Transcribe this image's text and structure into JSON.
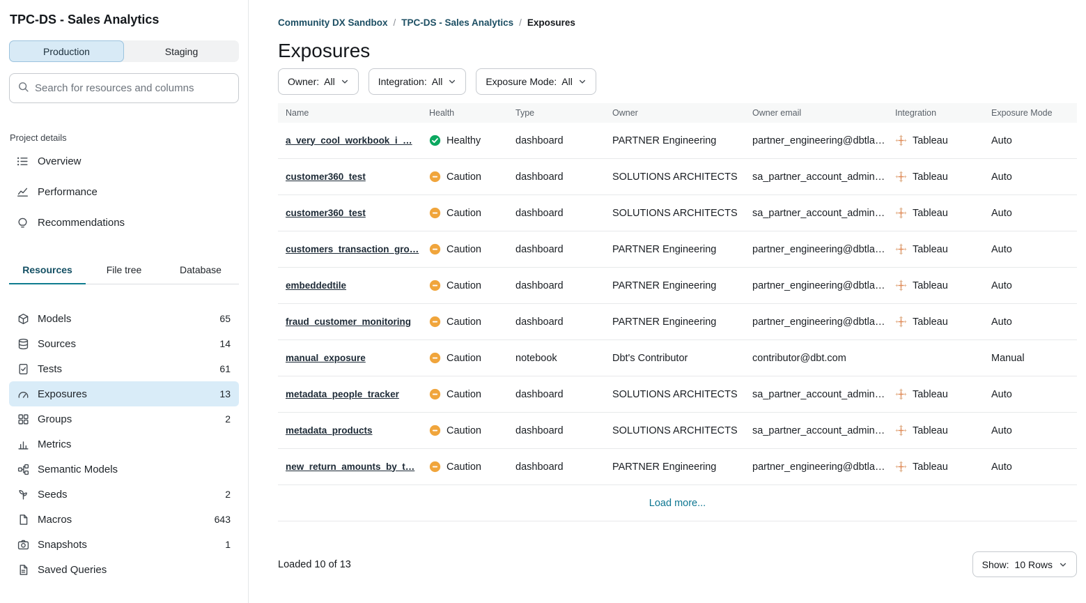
{
  "colors": {
    "accent_teal": "#0d7691",
    "healthy_green": "#0ca860",
    "caution_amber": "#f0a53c",
    "selected_blue": "#d9ecf8",
    "production_blue": "#d8eaf6",
    "tableau_orange": "#e08a57"
  },
  "sidebar": {
    "title": "TPC-DS - Sales Analytics",
    "env": {
      "production": "Production",
      "staging": "Staging"
    },
    "search_placeholder": "Search for resources and columns",
    "project_details_label": "Project details",
    "project_links": [
      {
        "label": "Overview",
        "icon": "list-icon"
      },
      {
        "label": "Performance",
        "icon": "chart-line-icon"
      },
      {
        "label": "Recommendations",
        "icon": "lightbulb-icon"
      }
    ],
    "tabs": {
      "resources": "Resources",
      "file_tree": "File tree",
      "database": "Database",
      "active": "Resources"
    },
    "resources": [
      {
        "label": "Models",
        "count": "65",
        "icon": "cube-icon",
        "selected": false
      },
      {
        "label": "Sources",
        "count": "14",
        "icon": "database-icon",
        "selected": false
      },
      {
        "label": "Tests",
        "count": "61",
        "icon": "test-icon",
        "selected": false
      },
      {
        "label": "Exposures",
        "count": "13",
        "icon": "gauge-icon",
        "selected": true
      },
      {
        "label": "Groups",
        "count": "2",
        "icon": "grid-icon",
        "selected": false
      },
      {
        "label": "Metrics",
        "count": "",
        "icon": "bar-chart-icon",
        "selected": false
      },
      {
        "label": "Semantic Models",
        "count": "",
        "icon": "semantic-icon",
        "selected": false
      },
      {
        "label": "Seeds",
        "count": "2",
        "icon": "seed-icon",
        "selected": false
      },
      {
        "label": "Macros",
        "count": "643",
        "icon": "document-icon",
        "selected": false
      },
      {
        "label": "Snapshots",
        "count": "1",
        "icon": "camera-icon",
        "selected": false
      },
      {
        "label": "Saved Queries",
        "count": "",
        "icon": "file-icon",
        "selected": false
      }
    ]
  },
  "main": {
    "breadcrumb": {
      "items": [
        "Community DX Sandbox",
        "TPC-DS - Sales Analytics"
      ],
      "current": "Exposures",
      "separator": "/"
    },
    "title": "Exposures",
    "filters": [
      {
        "label": "Owner:",
        "value": "All"
      },
      {
        "label": "Integration:",
        "value": "All"
      },
      {
        "label": "Exposure Mode:",
        "value": "All"
      }
    ],
    "table": {
      "columns": [
        "Name",
        "Health",
        "Type",
        "Owner",
        "Owner email",
        "Integration",
        "Exposure Mode"
      ],
      "rows": [
        {
          "name": "a_very_cool_workbook_i_…",
          "health": "Healthy",
          "health_icon": "check-circle-icon",
          "type": "dashboard",
          "owner": "PARTNER Engineering",
          "owner_email": "partner_engineering@dbtla…",
          "integration": "Tableau",
          "integration_icon": "tableau-icon",
          "exposure_mode": "Auto"
        },
        {
          "name": "customer360_test",
          "health": "Caution",
          "health_icon": "dash-circle-icon",
          "type": "dashboard",
          "owner": "SOLUTIONS ARCHITECTS",
          "owner_email": "sa_partner_account_admin…",
          "integration": "Tableau",
          "integration_icon": "tableau-icon",
          "exposure_mode": "Auto"
        },
        {
          "name": "customer360_test",
          "health": "Caution",
          "health_icon": "dash-circle-icon",
          "type": "dashboard",
          "owner": "SOLUTIONS ARCHITECTS",
          "owner_email": "sa_partner_account_admin…",
          "integration": "Tableau",
          "integration_icon": "tableau-icon",
          "exposure_mode": "Auto"
        },
        {
          "name": "customers_transaction_gro…",
          "health": "Caution",
          "health_icon": "dash-circle-icon",
          "type": "dashboard",
          "owner": "PARTNER Engineering",
          "owner_email": "partner_engineering@dbtla…",
          "integration": "Tableau",
          "integration_icon": "tableau-icon",
          "exposure_mode": "Auto"
        },
        {
          "name": "embeddedtile",
          "health": "Caution",
          "health_icon": "dash-circle-icon",
          "type": "dashboard",
          "owner": "PARTNER Engineering",
          "owner_email": "partner_engineering@dbtla…",
          "integration": "Tableau",
          "integration_icon": "tableau-icon",
          "exposure_mode": "Auto"
        },
        {
          "name": "fraud_customer_monitoring",
          "health": "Caution",
          "health_icon": "dash-circle-icon",
          "type": "dashboard",
          "owner": "PARTNER Engineering",
          "owner_email": "partner_engineering@dbtla…",
          "integration": "Tableau",
          "integration_icon": "tableau-icon",
          "exposure_mode": "Auto"
        },
        {
          "name": "manual_exposure",
          "health": "Caution",
          "health_icon": "dash-circle-icon",
          "type": "notebook",
          "owner": "Dbt's Contributor",
          "owner_email": "contributor@dbt.com",
          "integration": "",
          "integration_icon": "",
          "exposure_mode": "Manual"
        },
        {
          "name": "metadata_people_tracker",
          "health": "Caution",
          "health_icon": "dash-circle-icon",
          "type": "dashboard",
          "owner": "SOLUTIONS ARCHITECTS",
          "owner_email": "sa_partner_account_admin…",
          "integration": "Tableau",
          "integration_icon": "tableau-icon",
          "exposure_mode": "Auto"
        },
        {
          "name": "metadata_products",
          "health": "Caution",
          "health_icon": "dash-circle-icon",
          "type": "dashboard",
          "owner": "SOLUTIONS ARCHITECTS",
          "owner_email": "sa_partner_account_admin…",
          "integration": "Tableau",
          "integration_icon": "tableau-icon",
          "exposure_mode": "Auto"
        },
        {
          "name": "new_return_amounts_by_t…",
          "health": "Caution",
          "health_icon": "dash-circle-icon",
          "type": "dashboard",
          "owner": "PARTNER Engineering",
          "owner_email": "partner_engineering@dbtla…",
          "integration": "Tableau",
          "integration_icon": "tableau-icon",
          "exposure_mode": "Auto"
        }
      ]
    },
    "load_more_label": "Load more...",
    "loaded_status": "Loaded 10 of 13",
    "show_rows": {
      "label": "Show:",
      "value": "10 Rows"
    }
  }
}
